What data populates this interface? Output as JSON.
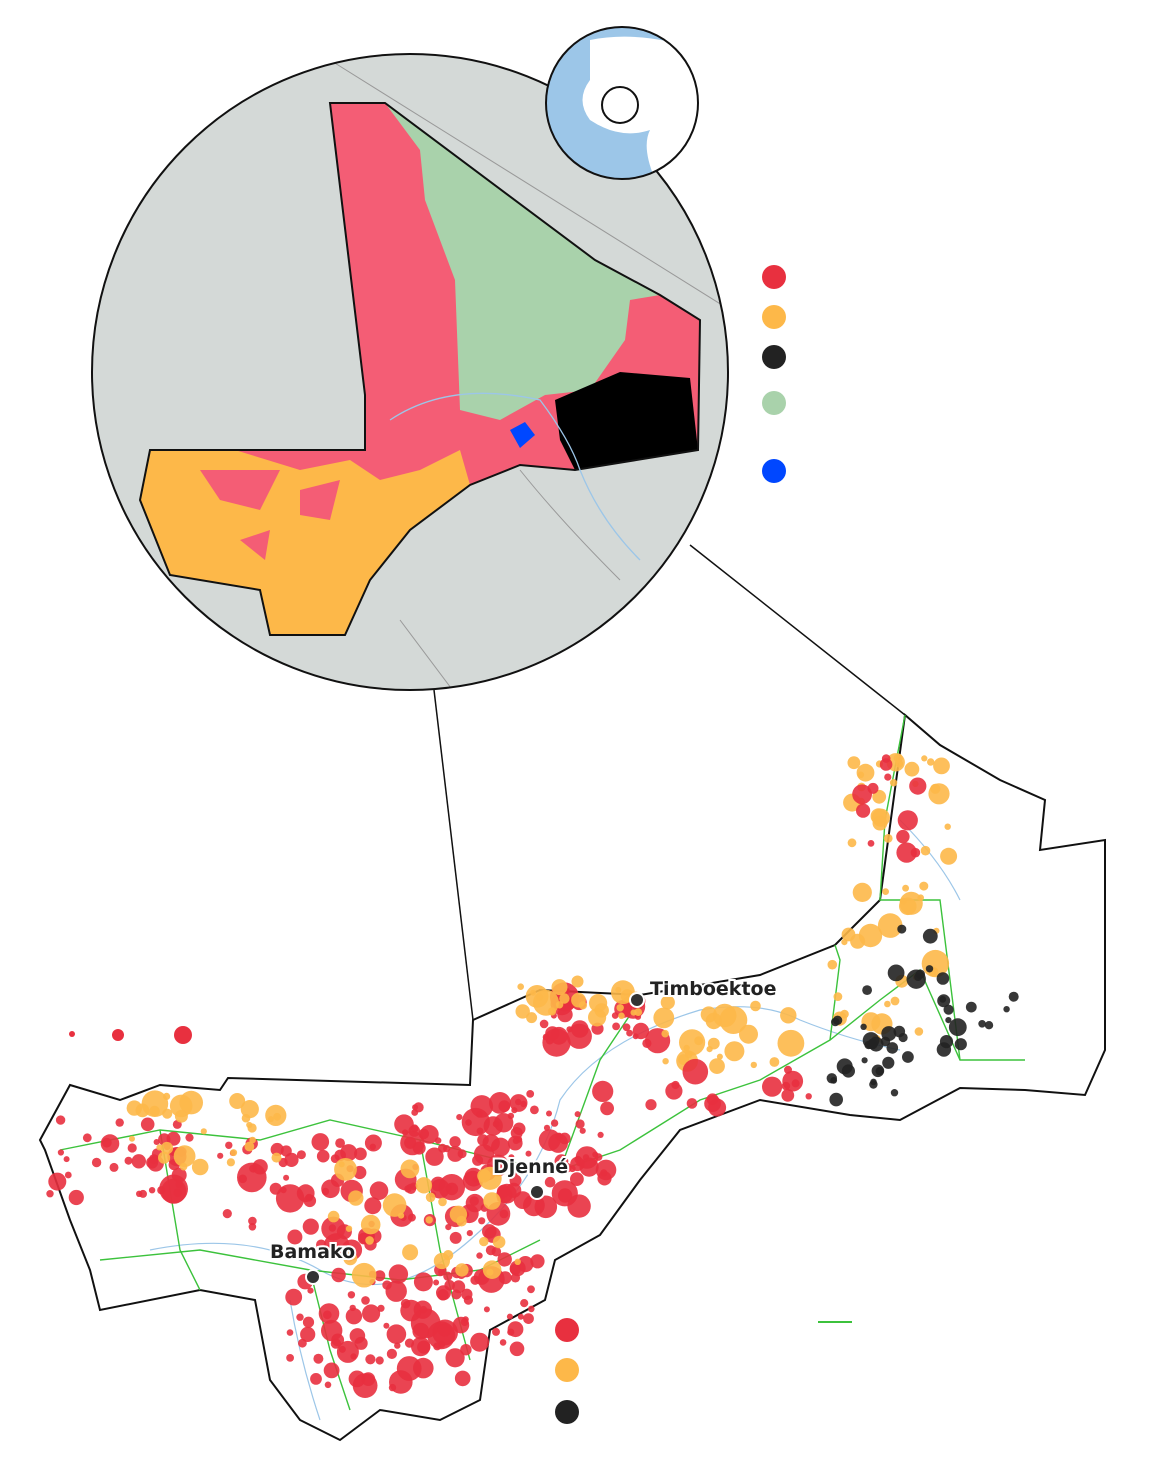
{
  "cities": [
    {
      "label": "Timboektoe"
    },
    {
      "label": "Djenné"
    },
    {
      "label": "Bamako"
    }
  ]
}
